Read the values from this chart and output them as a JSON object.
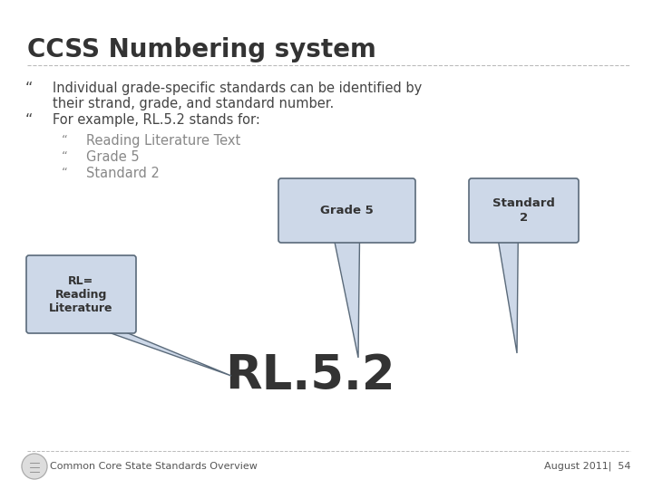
{
  "background_color": "#ffffff",
  "title": "CCSS Numbering system",
  "title_fontsize": 20,
  "title_color": "#333333",
  "bullet_color": "#444444",
  "bullet_fontsize": 10.5,
  "sub_bullet_color": "#888888",
  "sub_bullet_fontsize": 10.5,
  "rl52_text": "RL.5.2",
  "rl52_fontsize": 38,
  "rl52_color": "#333333",
  "callout_fill": "#cdd8e8",
  "callout_edge": "#5a6a7a",
  "footer_left": "Common Core State Standards Overview",
  "footer_right": "August 2011|  54",
  "footer_fontsize": 8,
  "footer_color": "#555555",
  "dashed_line_color": "#bbbbbb"
}
